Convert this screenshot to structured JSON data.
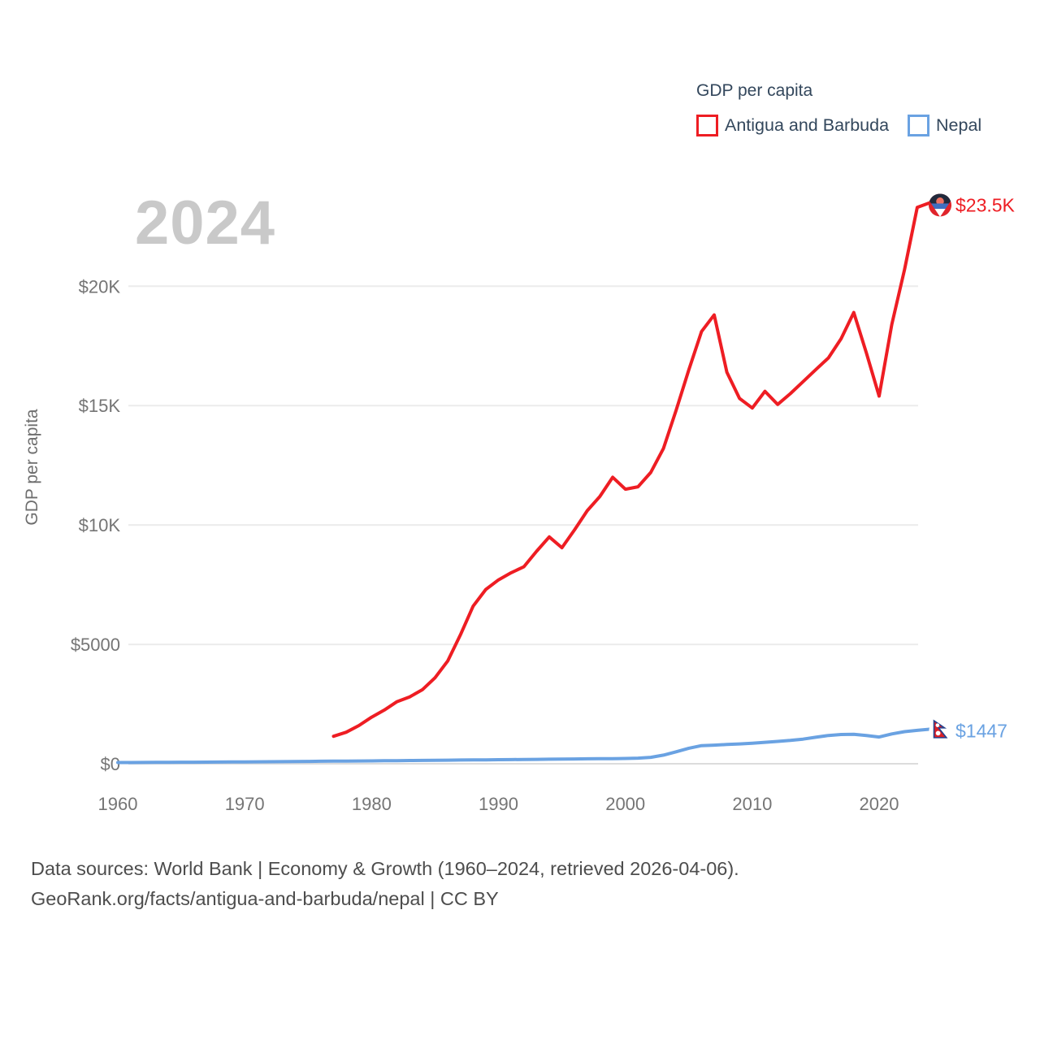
{
  "page": {
    "watermark_year": "2024",
    "footer_line1": "Data sources: World Bank | Economy & Growth (1960–2024, retrieved 2026-04-06).",
    "footer_line2": "GeoRank.org/facts/antigua-and-barbuda/nepal | CC BY"
  },
  "legend": {
    "title": "GDP per capita",
    "items": [
      {
        "label": "Antigua and Barbuda",
        "color": "#ee1d23"
      },
      {
        "label": "Nepal",
        "color": "#6aa2e2"
      }
    ]
  },
  "chart_data": {
    "type": "line",
    "title": "GDP per capita",
    "xlabel": "",
    "ylabel": "GDP per capita",
    "grid": true,
    "legend_position": "top-right",
    "x_axis": {
      "range": [
        1960,
        2024
      ],
      "tick_labels": [
        "1960",
        "1970",
        "1980",
        "1990",
        "2000",
        "2010",
        "2020"
      ],
      "tick_values": [
        1960,
        1970,
        1980,
        1990,
        2000,
        2010,
        2020
      ]
    },
    "y_axis": {
      "range": [
        0,
        23500
      ],
      "ticks": [
        {
          "value": 0,
          "label": "$0"
        },
        {
          "value": 5000,
          "label": "$5000"
        },
        {
          "value": 10000,
          "label": "$10K"
        },
        {
          "value": 15000,
          "label": "$15K"
        },
        {
          "value": 20000,
          "label": "$20K"
        }
      ]
    },
    "series": [
      {
        "name": "Antigua and Barbuda",
        "color": "#ee1d23",
        "end_label": "$23.5K",
        "flag": "antigua-and-barbuda",
        "points": [
          [
            1977,
            1150
          ],
          [
            1978,
            1320
          ],
          [
            1979,
            1600
          ],
          [
            1980,
            1950
          ],
          [
            1981,
            2250
          ],
          [
            1982,
            2600
          ],
          [
            1983,
            2800
          ],
          [
            1984,
            3100
          ],
          [
            1985,
            3600
          ],
          [
            1986,
            4300
          ],
          [
            1987,
            5400
          ],
          [
            1988,
            6600
          ],
          [
            1989,
            7300
          ],
          [
            1990,
            7700
          ],
          [
            1991,
            8000
          ],
          [
            1992,
            8250
          ],
          [
            1993,
            8900
          ],
          [
            1994,
            9500
          ],
          [
            1995,
            9050
          ],
          [
            1996,
            9800
          ],
          [
            1997,
            10600
          ],
          [
            1998,
            11200
          ],
          [
            1999,
            12000
          ],
          [
            2000,
            11500
          ],
          [
            2001,
            11600
          ],
          [
            2002,
            12200
          ],
          [
            2003,
            13200
          ],
          [
            2004,
            14800
          ],
          [
            2005,
            16500
          ],
          [
            2006,
            18100
          ],
          [
            2007,
            18800
          ],
          [
            2008,
            16400
          ],
          [
            2009,
            15300
          ],
          [
            2010,
            14900
          ],
          [
            2011,
            15600
          ],
          [
            2012,
            15050
          ],
          [
            2013,
            15500
          ],
          [
            2014,
            16000
          ],
          [
            2015,
            16500
          ],
          [
            2016,
            17000
          ],
          [
            2017,
            17800
          ],
          [
            2018,
            18900
          ],
          [
            2019,
            17200
          ],
          [
            2020,
            15400
          ],
          [
            2021,
            18400
          ],
          [
            2022,
            20700
          ],
          [
            2023,
            23300
          ],
          [
            2024,
            23500
          ]
        ]
      },
      {
        "name": "Nepal",
        "color": "#6aa2e2",
        "end_label": "$1447",
        "flag": "nepal",
        "points": [
          [
            1960,
            50
          ],
          [
            1961,
            52
          ],
          [
            1962,
            55
          ],
          [
            1963,
            57
          ],
          [
            1964,
            60
          ],
          [
            1965,
            63
          ],
          [
            1966,
            66
          ],
          [
            1967,
            69
          ],
          [
            1968,
            72
          ],
          [
            1969,
            75
          ],
          [
            1970,
            78
          ],
          [
            1971,
            82
          ],
          [
            1972,
            86
          ],
          [
            1973,
            90
          ],
          [
            1974,
            95
          ],
          [
            1975,
            100
          ],
          [
            1976,
            104
          ],
          [
            1977,
            108
          ],
          [
            1978,
            112
          ],
          [
            1979,
            116
          ],
          [
            1980,
            120
          ],
          [
            1981,
            125
          ],
          [
            1982,
            130
          ],
          [
            1983,
            135
          ],
          [
            1984,
            140
          ],
          [
            1985,
            145
          ],
          [
            1986,
            150
          ],
          [
            1987,
            155
          ],
          [
            1988,
            160
          ],
          [
            1989,
            165
          ],
          [
            1990,
            170
          ],
          [
            1991,
            175
          ],
          [
            1992,
            180
          ],
          [
            1993,
            185
          ],
          [
            1994,
            190
          ],
          [
            1995,
            196
          ],
          [
            1996,
            201
          ],
          [
            1997,
            206
          ],
          [
            1998,
            211
          ],
          [
            1999,
            216
          ],
          [
            2000,
            222
          ],
          [
            2001,
            235
          ],
          [
            2002,
            270
          ],
          [
            2003,
            360
          ],
          [
            2004,
            500
          ],
          [
            2005,
            650
          ],
          [
            2006,
            760
          ],
          [
            2007,
            780
          ],
          [
            2008,
            805
          ],
          [
            2009,
            830
          ],
          [
            2010,
            860
          ],
          [
            2011,
            900
          ],
          [
            2012,
            935
          ],
          [
            2013,
            975
          ],
          [
            2014,
            1030
          ],
          [
            2015,
            1110
          ],
          [
            2016,
            1185
          ],
          [
            2017,
            1225
          ],
          [
            2018,
            1235
          ],
          [
            2019,
            1180
          ],
          [
            2020,
            1120
          ],
          [
            2021,
            1250
          ],
          [
            2022,
            1345
          ],
          [
            2023,
            1400
          ],
          [
            2024,
            1447
          ]
        ]
      }
    ]
  }
}
